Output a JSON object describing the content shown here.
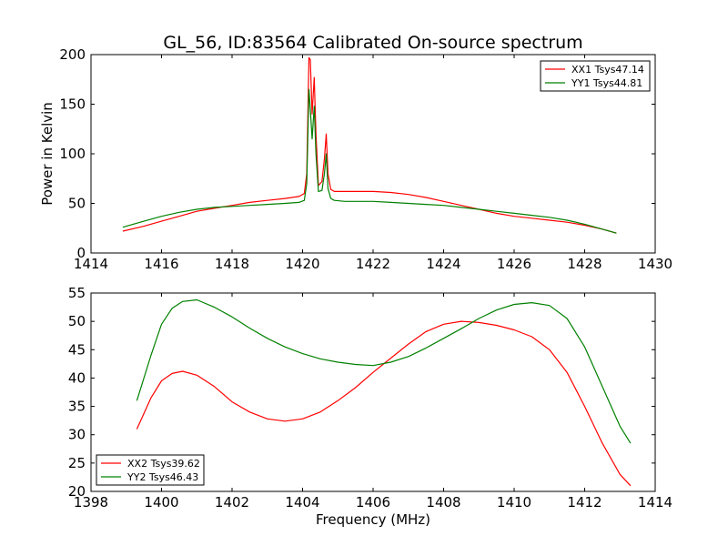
{
  "chart_data": [
    {
      "type": "line",
      "title": "GL_56, ID:83564 Calibrated On-source spectrum",
      "xlabel": "",
      "ylabel": "Power in Kelvin",
      "xlim": [
        1414,
        1430
      ],
      "ylim": [
        0,
        200
      ],
      "xticks": [
        "1414",
        "1416",
        "1418",
        "1420",
        "1422",
        "1424",
        "1426",
        "1428",
        "1430"
      ],
      "yticks": [
        "0",
        "50",
        "100",
        "150",
        "200"
      ],
      "grid": false,
      "legend_position": "top-right",
      "series": [
        {
          "name": "XX1 Tsys47.14",
          "color": "#ff0000",
          "x": [
            1414.9,
            1415.5,
            1416.0,
            1416.5,
            1417.0,
            1417.5,
            1418.0,
            1418.5,
            1419.0,
            1419.5,
            1419.9,
            1420.05,
            1420.12,
            1420.18,
            1420.22,
            1420.27,
            1420.33,
            1420.38,
            1420.45,
            1420.55,
            1420.62,
            1420.67,
            1420.72,
            1420.8,
            1420.9,
            1421.2,
            1421.5,
            1422.0,
            1422.5,
            1423.0,
            1423.5,
            1424.0,
            1424.5,
            1425.0,
            1425.5,
            1426.0,
            1426.5,
            1427.0,
            1427.5,
            1428.0,
            1428.5,
            1428.9
          ],
          "values": [
            22,
            27,
            32,
            37,
            42,
            45,
            48,
            51,
            53,
            55,
            57,
            60,
            80,
            197,
            195,
            140,
            177,
            120,
            68,
            72,
            95,
            120,
            80,
            64,
            62,
            62,
            62,
            62,
            61,
            59,
            56,
            52,
            48,
            44,
            40,
            37,
            35,
            33,
            31,
            28,
            24,
            20
          ]
        },
        {
          "name": "YY1 Tsys44.81",
          "color": "#008000",
          "x": [
            1414.9,
            1415.5,
            1416.0,
            1416.5,
            1417.0,
            1417.5,
            1418.0,
            1418.5,
            1419.0,
            1419.5,
            1419.9,
            1420.05,
            1420.12,
            1420.18,
            1420.22,
            1420.27,
            1420.33,
            1420.38,
            1420.45,
            1420.55,
            1420.62,
            1420.67,
            1420.72,
            1420.8,
            1420.9,
            1421.2,
            1421.5,
            1422.0,
            1422.5,
            1423.0,
            1423.5,
            1424.0,
            1424.5,
            1425.0,
            1425.5,
            1426.0,
            1426.5,
            1427.0,
            1427.5,
            1428.0,
            1428.5,
            1428.9
          ],
          "values": [
            26,
            32,
            37,
            41,
            44,
            46,
            47,
            48,
            49,
            50,
            51,
            53,
            70,
            165,
            145,
            115,
            148,
            100,
            62,
            63,
            80,
            100,
            65,
            55,
            53,
            52,
            52,
            52,
            51,
            50,
            49,
            48,
            46,
            44,
            42,
            40,
            38,
            36,
            33,
            29,
            24,
            20
          ]
        }
      ]
    },
    {
      "type": "line",
      "title": "",
      "xlabel": "Frequency (MHz)",
      "ylabel": "",
      "xlim": [
        1398,
        1414
      ],
      "ylim": [
        20,
        55
      ],
      "xticks": [
        "1398",
        "1400",
        "1402",
        "1404",
        "1406",
        "1408",
        "1410",
        "1412",
        "1414"
      ],
      "yticks": [
        "20",
        "25",
        "30",
        "35",
        "40",
        "45",
        "50",
        "55"
      ],
      "grid": false,
      "legend_position": "bottom-left",
      "series": [
        {
          "name": "XX2 Tsys39.62",
          "color": "#ff0000",
          "x": [
            1399.3,
            1399.7,
            1400.0,
            1400.3,
            1400.6,
            1401.0,
            1401.5,
            1402.0,
            1402.5,
            1403.0,
            1403.5,
            1404.0,
            1404.5,
            1405.0,
            1405.5,
            1406.0,
            1406.5,
            1407.0,
            1407.5,
            1408.0,
            1408.5,
            1409.0,
            1409.5,
            1410.0,
            1410.5,
            1411.0,
            1411.5,
            1412.0,
            1412.5,
            1413.0,
            1413.3
          ],
          "values": [
            31,
            36.5,
            39.5,
            40.8,
            41.2,
            40.5,
            38.5,
            35.8,
            34,
            32.8,
            32.4,
            32.8,
            34,
            36,
            38.3,
            41,
            43.5,
            46,
            48.2,
            49.5,
            50,
            49.8,
            49.3,
            48.5,
            47.3,
            45,
            41,
            35,
            28.5,
            23,
            21
          ]
        },
        {
          "name": "YY2 Tsys46.43",
          "color": "#008000",
          "x": [
            1399.3,
            1399.7,
            1400.0,
            1400.3,
            1400.6,
            1401.0,
            1401.5,
            1402.0,
            1402.5,
            1403.0,
            1403.5,
            1404.0,
            1404.5,
            1405.0,
            1405.5,
            1406.0,
            1406.5,
            1407.0,
            1407.5,
            1408.0,
            1408.5,
            1409.0,
            1409.5,
            1410.0,
            1410.5,
            1411.0,
            1411.5,
            1412.0,
            1412.5,
            1413.0,
            1413.3
          ],
          "values": [
            36,
            44,
            49.5,
            52.3,
            53.5,
            53.8,
            52.5,
            50.8,
            48.8,
            47,
            45.5,
            44.3,
            43.4,
            42.8,
            42.4,
            42.2,
            42.8,
            43.8,
            45.3,
            47,
            48.7,
            50.5,
            52,
            53,
            53.3,
            52.8,
            50.5,
            45.5,
            38.5,
            31.5,
            28.5
          ]
        }
      ]
    }
  ]
}
